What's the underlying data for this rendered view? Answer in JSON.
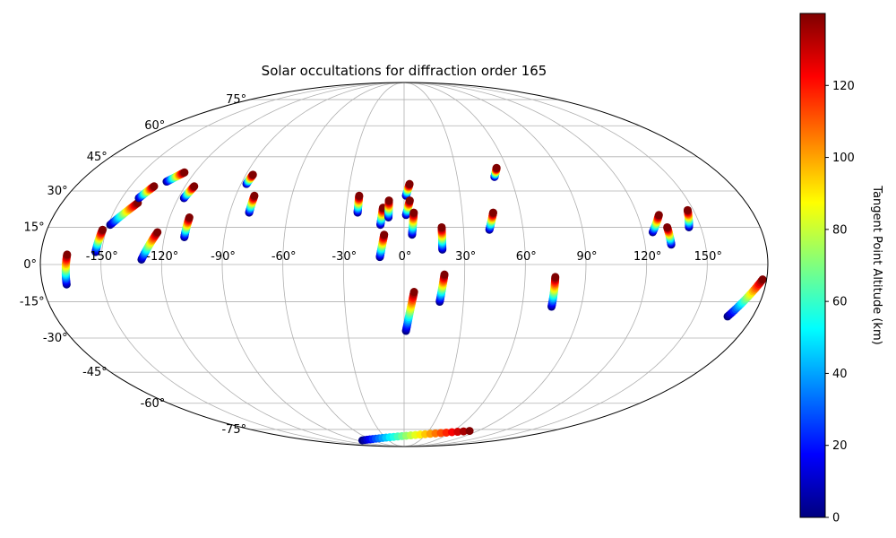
{
  "chart_data": {
    "type": "scatter",
    "projection": "mollweide",
    "title": "Solar occultations for diffraction order 165",
    "grid": true,
    "longitude_ticks": [
      "-150°",
      "-120°",
      "-90°",
      "-60°",
      "-30°",
      "0°",
      "30°",
      "60°",
      "90°",
      "120°",
      "150°"
    ],
    "latitude_ticks": [
      "75°",
      "60°",
      "45°",
      "30°",
      "15°",
      "0°",
      "-15°",
      "-30°",
      "-45°",
      "-60°",
      "-75°"
    ],
    "colorbar": {
      "label": "Tangent Point Altitude (km)",
      "colormap": "jet",
      "range": [
        0,
        140
      ],
      "ticks": [
        "0",
        "20",
        "40",
        "60",
        "80",
        "100",
        "120"
      ]
    },
    "series": [
      {
        "lon": [
          -168,
          -167
        ],
        "lat": [
          -8,
          4
        ]
      },
      {
        "lon": [
          -153,
          -152
        ],
        "lat": [
          5,
          14
        ]
      },
      {
        "lon": [
          -149,
          -140
        ],
        "lat": [
          16,
          25
        ]
      },
      {
        "lon": [
          -141,
          -137
        ],
        "lat": [
          27,
          32
        ]
      },
      {
        "lon": [
          -132,
          -126
        ],
        "lat": [
          34,
          38
        ]
      },
      {
        "lon": [
          -130,
          -124
        ],
        "lat": [
          2,
          13
        ]
      },
      {
        "lon": [
          -117,
          -115
        ],
        "lat": [
          27,
          32
        ]
      },
      {
        "lon": [
          -110,
          -110
        ],
        "lat": [
          11,
          19
        ]
      },
      {
        "lon": [
          -87,
          -86
        ],
        "lat": [
          33,
          37
        ]
      },
      {
        "lon": [
          -80,
          -80
        ],
        "lat": [
          21,
          28
        ]
      },
      {
        "lon": [
          -24,
          -24
        ],
        "lat": [
          21,
          28
        ]
      },
      {
        "lon": [
          -12,
          -11
        ],
        "lat": [
          16,
          23
        ]
      },
      {
        "lon": [
          -12,
          -10
        ],
        "lat": [
          3,
          12
        ]
      },
      {
        "lon": [
          -8,
          -8
        ],
        "lat": [
          19,
          26
        ]
      },
      {
        "lon": [
          1,
          3
        ],
        "lat": [
          28,
          33
        ]
      },
      {
        "lon": [
          1,
          3
        ],
        "lat": [
          20,
          26
        ]
      },
      {
        "lon": [
          4,
          5
        ],
        "lat": [
          12,
          21
        ]
      },
      {
        "lon": [
          19,
          19
        ],
        "lat": [
          6,
          15
        ]
      },
      {
        "lon": [
          18,
          20
        ],
        "lat": [
          -15,
          -4
        ]
      },
      {
        "lon": [
          1,
          5
        ],
        "lat": [
          -27,
          -11
        ]
      },
      {
        "lon": [
          43,
          46
        ],
        "lat": [
          14,
          21
        ]
      },
      {
        "lon": [
          51,
          54
        ],
        "lat": [
          36,
          40
        ]
      },
      {
        "lon": [
          75,
          75
        ],
        "lat": [
          -17,
          -5
        ]
      },
      {
        "lon": [
          125,
          131
        ],
        "lat": [
          13,
          20
        ]
      },
      {
        "lon": [
          133,
          133
        ],
        "lat": [
          8,
          15
        ]
      },
      {
        "lon": [
          144,
          147
        ],
        "lat": [
          15,
          22
        ]
      },
      {
        "lon": [
          167,
          178
        ],
        "lat": [
          -21,
          -6
        ]
      },
      {
        "lon": [
          -80,
          80
        ],
        "lat": [
          -83,
          -76
        ]
      }
    ]
  }
}
